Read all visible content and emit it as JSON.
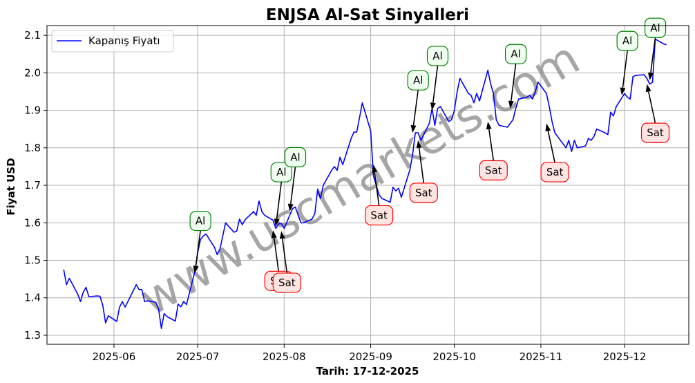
{
  "chart_data": {
    "type": "line",
    "title": "ENJSA Al-Sat Sinyalleri",
    "xlabel": "Tarih: 17-12-2025",
    "ylabel": "Fiyat USD",
    "x_type": "date",
    "x_range": [
      "2025-05-08",
      "2025-12-24"
    ],
    "ylim": [
      1.276,
      2.126
    ],
    "grid": true,
    "legend_position": "upper left",
    "x_ticks": [
      "2025-06-01",
      "2025-07-01",
      "2025-08-01",
      "2025-09-01",
      "2025-10-01",
      "2025-11-01",
      "2025-12-01"
    ],
    "x_tick_labels": [
      "2025-06",
      "2025-07",
      "2025-08",
      "2025-09",
      "2025-10",
      "2025-11",
      "2025-12"
    ],
    "y_ticks": [
      1.3,
      1.4,
      1.5,
      1.6,
      1.7,
      1.8,
      1.9,
      2.0,
      2.1
    ],
    "y_tick_labels": [
      "1.3",
      "1.4",
      "1.5",
      "1.6",
      "1.7",
      "1.8",
      "1.9",
      "2.0",
      "2.1"
    ],
    "series": [
      {
        "name": "Kapanış Fiyatı",
        "color": "#0000ff",
        "points": [
          [
            "2025-05-14",
            1.475
          ],
          [
            "2025-05-15",
            1.435
          ],
          [
            "2025-05-16",
            1.452
          ],
          [
            "2025-05-19",
            1.41
          ],
          [
            "2025-05-20",
            1.39
          ],
          [
            "2025-05-21",
            1.415
          ],
          [
            "2025-05-22",
            1.428
          ],
          [
            "2025-05-23",
            1.403
          ],
          [
            "2025-05-26",
            1.405
          ],
          [
            "2025-05-27",
            1.404
          ],
          [
            "2025-05-28",
            1.38
          ],
          [
            "2025-05-29",
            1.333
          ],
          [
            "2025-05-30",
            1.352
          ],
          [
            "2025-06-02",
            1.337
          ],
          [
            "2025-06-03",
            1.375
          ],
          [
            "2025-06-04",
            1.39
          ],
          [
            "2025-06-05",
            1.375
          ],
          [
            "2025-06-06",
            1.39
          ],
          [
            "2025-06-09",
            1.435
          ],
          [
            "2025-06-10",
            1.422
          ],
          [
            "2025-06-11",
            1.422
          ],
          [
            "2025-06-12",
            1.39
          ],
          [
            "2025-06-13",
            1.392
          ],
          [
            "2025-06-16",
            1.388
          ],
          [
            "2025-06-17",
            1.37
          ],
          [
            "2025-06-18",
            1.318
          ],
          [
            "2025-06-19",
            1.358
          ],
          [
            "2025-06-20",
            1.35
          ],
          [
            "2025-06-23",
            1.338
          ],
          [
            "2025-06-24",
            1.383
          ],
          [
            "2025-06-25",
            1.376
          ],
          [
            "2025-06-26",
            1.39
          ],
          [
            "2025-06-27",
            1.382
          ],
          [
            "2025-06-30",
            1.47
          ],
          [
            "2025-07-01",
            1.52
          ],
          [
            "2025-07-02",
            1.555
          ],
          [
            "2025-07-03",
            1.565
          ],
          [
            "2025-07-04",
            1.57
          ],
          [
            "2025-07-07",
            1.535
          ],
          [
            "2025-07-08",
            1.515
          ],
          [
            "2025-07-09",
            1.53
          ],
          [
            "2025-07-10",
            1.565
          ],
          [
            "2025-07-11",
            1.6
          ],
          [
            "2025-07-14",
            1.575
          ],
          [
            "2025-07-15",
            1.578
          ],
          [
            "2025-07-16",
            1.61
          ],
          [
            "2025-07-17",
            1.595
          ],
          [
            "2025-07-18",
            1.608
          ],
          [
            "2025-07-21",
            1.63
          ],
          [
            "2025-07-22",
            1.62
          ],
          [
            "2025-07-23",
            1.658
          ],
          [
            "2025-07-24",
            1.63
          ],
          [
            "2025-07-25",
            1.62
          ],
          [
            "2025-07-28",
            1.607
          ],
          [
            "2025-07-29",
            1.585
          ],
          [
            "2025-07-30",
            1.597
          ],
          [
            "2025-07-31",
            1.598
          ],
          [
            "2025-08-01",
            1.585
          ],
          [
            "2025-08-04",
            1.638
          ],
          [
            "2025-08-05",
            1.642
          ],
          [
            "2025-08-06",
            1.62
          ],
          [
            "2025-08-07",
            1.6
          ],
          [
            "2025-08-08",
            1.6
          ],
          [
            "2025-08-11",
            1.61
          ],
          [
            "2025-08-12",
            1.625
          ],
          [
            "2025-08-13",
            1.69
          ],
          [
            "2025-08-14",
            1.665
          ],
          [
            "2025-08-15",
            1.7
          ],
          [
            "2025-08-18",
            1.74
          ],
          [
            "2025-08-19",
            1.75
          ],
          [
            "2025-08-20",
            1.74
          ],
          [
            "2025-08-21",
            1.775
          ],
          [
            "2025-08-22",
            1.755
          ],
          [
            "2025-08-25",
            1.825
          ],
          [
            "2025-08-26",
            1.842
          ],
          [
            "2025-08-27",
            1.842
          ],
          [
            "2025-08-28",
            1.88
          ],
          [
            "2025-08-29",
            1.92
          ],
          [
            "2025-09-01",
            1.845
          ],
          [
            "2025-09-02",
            1.725
          ],
          [
            "2025-09-03",
            1.7
          ],
          [
            "2025-09-04",
            1.675
          ],
          [
            "2025-09-05",
            1.665
          ],
          [
            "2025-09-08",
            1.655
          ],
          [
            "2025-09-09",
            1.695
          ],
          [
            "2025-09-10",
            1.685
          ],
          [
            "2025-09-11",
            1.692
          ],
          [
            "2025-09-12",
            1.668
          ],
          [
            "2025-09-15",
            1.74
          ],
          [
            "2025-09-16",
            1.78
          ],
          [
            "2025-09-17",
            1.84
          ],
          [
            "2025-09-18",
            1.84
          ],
          [
            "2025-09-19",
            1.82
          ],
          [
            "2025-09-22",
            1.865
          ],
          [
            "2025-09-23",
            1.905
          ],
          [
            "2025-09-24",
            1.86
          ],
          [
            "2025-09-25",
            1.905
          ],
          [
            "2025-09-26",
            1.91
          ],
          [
            "2025-09-29",
            1.87
          ],
          [
            "2025-09-30",
            1.875
          ],
          [
            "2025-10-01",
            1.9
          ],
          [
            "2025-10-02",
            1.95
          ],
          [
            "2025-10-03",
            1.985
          ],
          [
            "2025-10-06",
            1.945
          ],
          [
            "2025-10-07",
            1.94
          ],
          [
            "2025-10-08",
            1.92
          ],
          [
            "2025-10-09",
            1.945
          ],
          [
            "2025-10-10",
            1.925
          ],
          [
            "2025-10-13",
            2.007
          ],
          [
            "2025-10-14",
            1.97
          ],
          [
            "2025-10-15",
            1.945
          ],
          [
            "2025-10-16",
            1.875
          ],
          [
            "2025-10-17",
            1.86
          ],
          [
            "2025-10-20",
            1.855
          ],
          [
            "2025-10-21",
            1.865
          ],
          [
            "2025-10-22",
            1.875
          ],
          [
            "2025-10-23",
            1.905
          ],
          [
            "2025-10-24",
            1.93
          ],
          [
            "2025-10-27",
            1.935
          ],
          [
            "2025-10-28",
            1.94
          ],
          [
            "2025-10-29",
            1.93
          ],
          [
            "2025-10-30",
            1.95
          ],
          [
            "2025-10-31",
            1.975
          ],
          [
            "2025-11-03",
            1.945
          ],
          [
            "2025-11-04",
            1.91
          ],
          [
            "2025-11-05",
            1.87
          ],
          [
            "2025-11-06",
            1.84
          ],
          [
            "2025-11-07",
            1.83
          ],
          [
            "2025-11-10",
            1.8
          ],
          [
            "2025-11-11",
            1.82
          ],
          [
            "2025-11-12",
            1.79
          ],
          [
            "2025-11-13",
            1.82
          ],
          [
            "2025-11-14",
            1.8
          ],
          [
            "2025-11-17",
            1.805
          ],
          [
            "2025-11-18",
            1.825
          ],
          [
            "2025-11-19",
            1.82
          ],
          [
            "2025-11-20",
            1.83
          ],
          [
            "2025-11-21",
            1.85
          ],
          [
            "2025-11-24",
            1.84
          ],
          [
            "2025-11-25",
            1.835
          ],
          [
            "2025-11-26",
            1.895
          ],
          [
            "2025-11-27",
            1.885
          ],
          [
            "2025-11-28",
            1.91
          ],
          [
            "2025-12-01",
            1.945
          ],
          [
            "2025-12-02",
            1.935
          ],
          [
            "2025-12-03",
            1.93
          ],
          [
            "2025-12-04",
            1.99
          ],
          [
            "2025-12-05",
            1.993
          ],
          [
            "2025-12-08",
            1.995
          ],
          [
            "2025-12-09",
            1.985
          ],
          [
            "2025-12-10",
            1.97
          ],
          [
            "2025-12-11",
            1.975
          ],
          [
            "2025-12-12",
            2.09
          ],
          [
            "2025-12-15",
            2.077
          ],
          [
            "2025-12-16",
            2.075
          ]
        ]
      }
    ],
    "annotations": [
      {
        "type": "Al",
        "text": "Al",
        "date": "2025-06-30",
        "price": 1.465,
        "label_date": "2025-07-02",
        "label_price": 1.605
      },
      {
        "type": "Al",
        "text": "Al",
        "date": "2025-07-29",
        "price": 1.59,
        "label_date": "2025-07-31",
        "label_price": 1.735
      },
      {
        "type": "Al",
        "text": "Al",
        "date": "2025-08-03",
        "price": 1.63,
        "label_date": "2025-08-05",
        "label_price": 1.775
      },
      {
        "type": "Al",
        "text": "Al",
        "date": "2025-09-16",
        "price": 1.84,
        "label_date": "2025-09-18",
        "label_price": 1.98
      },
      {
        "type": "Al",
        "text": "Al",
        "date": "2025-09-23",
        "price": 1.9,
        "label_date": "2025-09-25",
        "label_price": 2.045
      },
      {
        "type": "Al",
        "text": "Al",
        "date": "2025-10-21",
        "price": 1.905,
        "label_date": "2025-10-23",
        "label_price": 2.05
      },
      {
        "type": "Al",
        "text": "Al",
        "date": "2025-11-30",
        "price": 1.94,
        "label_date": "2025-12-02",
        "label_price": 2.085
      },
      {
        "type": "Al",
        "text": "Al",
        "date": "2025-12-10",
        "price": 1.98,
        "label_date": "2025-12-12",
        "label_price": 2.12
      },
      {
        "type": "Sat",
        "text": "Sat",
        "date": "2025-07-28",
        "price": 1.58,
        "label_date": "2025-07-30",
        "label_price": 1.445
      },
      {
        "type": "Sat",
        "text": "Sat",
        "date": "2025-07-31",
        "price": 1.578,
        "label_date": "2025-08-02",
        "label_price": 1.44
      },
      {
        "type": "Sat",
        "text": "Sat",
        "date": "2025-09-02",
        "price": 1.755,
        "label_date": "2025-09-04",
        "label_price": 1.62
      },
      {
        "type": "Sat",
        "text": "Sat",
        "date": "2025-09-18",
        "price": 1.82,
        "label_date": "2025-09-20",
        "label_price": 1.68
      },
      {
        "type": "Sat",
        "text": "Sat",
        "date": "2025-10-13",
        "price": 1.87,
        "label_date": "2025-10-15",
        "label_price": 1.74
      },
      {
        "type": "Sat",
        "text": "Sat",
        "date": "2025-11-03",
        "price": 1.865,
        "label_date": "2025-11-06",
        "label_price": 1.735
      },
      {
        "type": "Sat",
        "text": "Sat",
        "date": "2025-12-09",
        "price": 1.97,
        "label_date": "2025-12-12",
        "label_price": 1.84
      }
    ],
    "colors": {
      "al_border": "#008000",
      "al_fill": "#f0fff0",
      "sat_border": "#ff0000",
      "sat_fill": "#ffe4e1",
      "grid": "#b0b0b0",
      "line": "#0000ff"
    },
    "watermark": "www.uscmarkets.com"
  }
}
